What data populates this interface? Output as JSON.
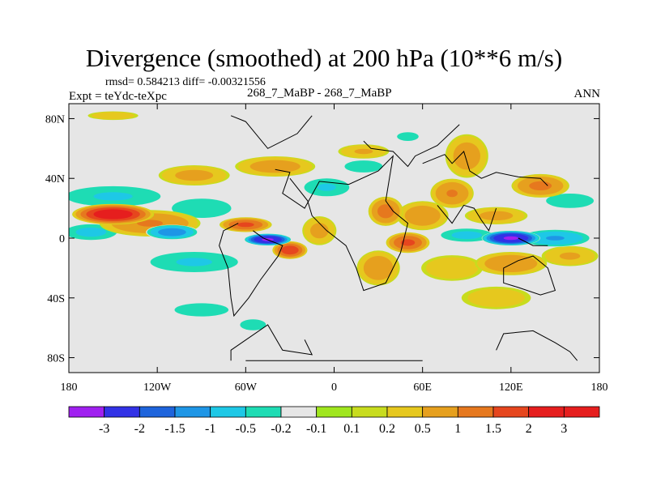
{
  "header": {
    "title": "Divergence (smoothed) at 200 hPa (10**6 m/s)",
    "stats": "rmsd= 0.584213 diff= -0.00321556",
    "experiment": "Expt = teYdc-teXpc",
    "case": "268_7_MaBP - 268_7_MaBP",
    "season": "ANN"
  },
  "chart_data": {
    "type": "heatmap",
    "title": "Divergence (smoothed) at 200 hPa (10**6 m/s)",
    "xlabel": "",
    "ylabel": "",
    "xlim": [
      -180,
      180
    ],
    "ylim": [
      -90,
      90
    ],
    "x_ticks": [
      {
        "value": -180,
        "label": "180"
      },
      {
        "value": -120,
        "label": "120W"
      },
      {
        "value": -60,
        "label": "60W"
      },
      {
        "value": 0,
        "label": "0"
      },
      {
        "value": 60,
        "label": "60E"
      },
      {
        "value": 120,
        "label": "120E"
      },
      {
        "value": 180,
        "label": "180"
      }
    ],
    "y_ticks": [
      {
        "value": 80,
        "label": "80N"
      },
      {
        "value": 40,
        "label": "40N"
      },
      {
        "value": 0,
        "label": "0"
      },
      {
        "value": -40,
        "label": "40S"
      },
      {
        "value": -80,
        "label": "80S"
      }
    ],
    "colorbar": {
      "labels": [
        "-3",
        "-2",
        "-1.5",
        "-1",
        "-0.5",
        "-0.2",
        "-0.1",
        "0.1",
        "0.2",
        "0.5",
        "1",
        "1.5",
        "2",
        "3"
      ],
      "colors": [
        "#a020f0",
        "#3232e6",
        "#1e64dc",
        "#1e96e6",
        "#1ec8e6",
        "#1edcb4",
        "#e6e6e6",
        "#a0e61e",
        "#c8dc1e",
        "#e6c81e",
        "#e6a01e",
        "#e6781e",
        "#e6461e",
        "#e61e1e"
      ]
    },
    "zero_value": 0,
    "features": [
      {
        "lon": -150,
        "lat": 16,
        "value": 2.5,
        "rlon": 28,
        "rlat": 7
      },
      {
        "lon": -125,
        "lat": 10,
        "value": 1.0,
        "rlon": 35,
        "rlat": 9
      },
      {
        "lon": -150,
        "lat": 28,
        "value": -0.5,
        "rlon": 38,
        "rlat": 8
      },
      {
        "lon": -165,
        "lat": 4,
        "value": -0.6,
        "rlon": 20,
        "rlat": 6
      },
      {
        "lon": -110,
        "lat": 4,
        "value": -1.3,
        "rlon": 18,
        "rlat": 5
      },
      {
        "lon": -60,
        "lat": 9,
        "value": 1.6,
        "rlon": 18,
        "rlat": 5
      },
      {
        "lon": -45,
        "lat": -1,
        "value": -3.0,
        "rlon": 16,
        "rlat": 4
      },
      {
        "lon": -30,
        "lat": -8,
        "value": 1.9,
        "rlon": 12,
        "rlat": 6
      },
      {
        "lon": -10,
        "lat": 5,
        "value": 0.6,
        "rlon": 12,
        "rlat": 10
      },
      {
        "lon": -90,
        "lat": 20,
        "value": -0.4,
        "rlon": 25,
        "rlat": 8
      },
      {
        "lon": -95,
        "lat": -16,
        "value": -0.5,
        "rlon": 35,
        "rlat": 8
      },
      {
        "lon": -95,
        "lat": 42,
        "value": 0.6,
        "rlon": 25,
        "rlat": 7
      },
      {
        "lon": -40,
        "lat": 48,
        "value": 0.7,
        "rlon": 28,
        "rlat": 7
      },
      {
        "lon": -5,
        "lat": 34,
        "value": -0.5,
        "rlon": 18,
        "rlat": 7
      },
      {
        "lon": 20,
        "lat": 58,
        "value": 0.5,
        "rlon": 18,
        "rlat": 5
      },
      {
        "lon": 20,
        "lat": 48,
        "value": -0.4,
        "rlon": 16,
        "rlat": 5
      },
      {
        "lon": 35,
        "lat": 18,
        "value": 1.2,
        "rlon": 12,
        "rlat": 10
      },
      {
        "lon": 60,
        "lat": 15,
        "value": 0.8,
        "rlon": 18,
        "rlat": 10
      },
      {
        "lon": 50,
        "lat": -3,
        "value": 1.6,
        "rlon": 15,
        "rlat": 7
      },
      {
        "lon": 30,
        "lat": -20,
        "value": 0.8,
        "rlon": 15,
        "rlat": 12
      },
      {
        "lon": 80,
        "lat": 30,
        "value": 1.0,
        "rlon": 15,
        "rlat": 10
      },
      {
        "lon": 90,
        "lat": 55,
        "value": 0.7,
        "rlon": 15,
        "rlat": 15
      },
      {
        "lon": 140,
        "lat": 35,
        "value": 1.1,
        "rlon": 20,
        "rlat": 8
      },
      {
        "lon": 160,
        "lat": 25,
        "value": -0.4,
        "rlon": 20,
        "rlat": 6
      },
      {
        "lon": 120,
        "lat": 0,
        "value": -3.0,
        "rlon": 20,
        "rlat": 5
      },
      {
        "lon": 150,
        "lat": 0,
        "value": -1.0,
        "rlon": 25,
        "rlat": 6
      },
      {
        "lon": 90,
        "lat": 2,
        "value": -0.6,
        "rlon": 20,
        "rlat": 5
      },
      {
        "lon": 110,
        "lat": 15,
        "value": 0.6,
        "rlon": 22,
        "rlat": 6
      },
      {
        "lon": 120,
        "lat": -17,
        "value": 0.9,
        "rlon": 25,
        "rlat": 8
      },
      {
        "lon": 160,
        "lat": -12,
        "value": 0.5,
        "rlon": 20,
        "rlat": 7
      },
      {
        "lon": 80,
        "lat": -20,
        "value": 0.4,
        "rlon": 22,
        "rlat": 9
      },
      {
        "lon": 110,
        "lat": -40,
        "value": 0.35,
        "rlon": 25,
        "rlat": 8
      },
      {
        "lon": -90,
        "lat": -48,
        "value": -0.3,
        "rlon": 25,
        "rlat": 6
      },
      {
        "lon": -150,
        "lat": 82,
        "value": 0.4,
        "rlon": 18,
        "rlat": 3
      },
      {
        "lon": -55,
        "lat": -58,
        "value": -0.3,
        "rlon": 12,
        "rlat": 5
      },
      {
        "lon": 50,
        "lat": 68,
        "value": -0.3,
        "rlon": 10,
        "rlat": 4
      }
    ],
    "coastline_segments": [
      "M -60 -82 L 60 -82",
      "M -20 -68 L -15 -78 L -35 -75 L -45 -58 L -70 -75 L -70 -82",
      "M 110 -75 L 115 -64 L 135 -62 L 150 -70 L 160 -76 L 165 -82",
      "M 60 50 L 75 56 L 80 50 L 88 58 L 92 45 L 100 40 L 110 44 L 125 41 L 140 40 L 145 35",
      "M 20 65 L 25 60 L 40 58 L 50 48 L 55 55 L 70 62 L 85 76",
      "M -70 82 L -60 78 L -45 60 L -25 70 L -15 82",
      "M -40 46 L -30 44 L -35 30 L -20 20 L -10 38 L 10 36 L 30 45 L 40 55 L 35 25 L 40 18 L 50 10 L 45 -10 L 35 -30 L 20 -35 L 15 -20 L 8 -5 L -5 5 L -15 15 L -18 25 L -30 40",
      "M -65 10 L -75 5 L -78 -5 L -72 -20 L -70 -40 L -68 -52 L -58 -40 L -50 -28 L -38 -12 L -35 -5 L -48 0 L -55 5",
      "M 70 22 L 80 10 L 88 22 L 95 20 L 100 12 L 105 5 L 110 20",
      "M 115 -20 L 125 -15 L 135 -12 L 145 -20 L 150 -35 L 140 -38 L 125 -33 L 115 -30 Z",
      "M 125 0 L 135 -5 L 145 -5"
    ]
  }
}
